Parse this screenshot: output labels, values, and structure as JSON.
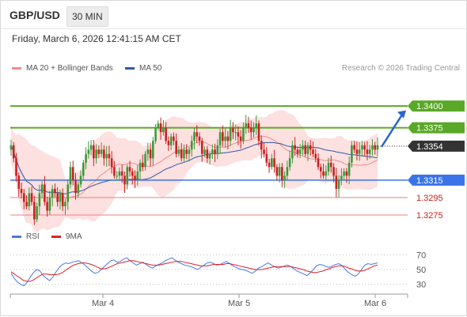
{
  "header": {
    "symbol": "GBP/USD",
    "period": "30 MIN",
    "timestamp": "Friday, March 6, 2026 12:41:15 AM CET"
  },
  "legend": {
    "ma20": "MA 20 + Bollinger Bands",
    "ma50": "MA 50",
    "ma20_color": "#f28b8b",
    "ma50_color": "#2f5aa5",
    "copyright": "Research © 2026 Trading Central"
  },
  "rsi_legend": {
    "rsi": "RSI",
    "ma9": "9MA",
    "rsi_color": "#4a7ae0",
    "ma9_color": "#e0202a"
  },
  "colors": {
    "bull": "#3b9a3b",
    "bear": "#cc2020",
    "green_level": "#5aa828",
    "blue_level": "#3a74e8",
    "red_level": "#ef7f7f",
    "band_fill": "#fde0e0",
    "last_price_bg": "#333333",
    "arrow": "#2a66c9"
  },
  "chart_data": [
    {
      "type": "candlestick",
      "symbol": "GBP/USD",
      "timeframe": "30 MIN",
      "ylim": [
        1.3265,
        1.343
      ],
      "x_ticks": [
        "Mar 4",
        "Mar 5",
        "Mar 6"
      ],
      "last_price": "1.3354",
      "levels": [
        {
          "label": "1.3400",
          "value": 1.34,
          "kind": "resistance",
          "color": "#5aa828"
        },
        {
          "label": "1.3375",
          "value": 1.3375,
          "kind": "resistance",
          "color": "#5aa828"
        },
        {
          "label": "1.3315",
          "value": 1.3315,
          "kind": "pivot",
          "color": "#3a74e8"
        },
        {
          "label": "1.3295",
          "value": 1.3295,
          "kind": "support",
          "color": "#ef7f7f"
        },
        {
          "label": "1.3275",
          "value": 1.3275,
          "kind": "support",
          "color": "#ef7f7f"
        }
      ],
      "projection": {
        "from": 1.3354,
        "to": 1.3395,
        "direction": "up"
      },
      "close": [
        1.3355,
        1.334,
        1.332,
        1.3305,
        1.33,
        1.329,
        1.3285,
        1.33,
        1.329,
        1.327,
        1.3285,
        1.33,
        1.331,
        1.329,
        1.328,
        1.3295,
        1.3305,
        1.33,
        1.329,
        1.33,
        1.3285,
        1.329,
        1.331,
        1.333,
        1.3315,
        1.33,
        1.331,
        1.332,
        1.3335,
        1.3345,
        1.335,
        1.3355,
        1.334,
        1.335,
        1.3345,
        1.335,
        1.334,
        1.3345,
        1.334,
        1.333,
        1.332,
        1.332,
        1.3325,
        1.332,
        1.331,
        1.333,
        1.3325,
        1.332,
        1.3315,
        1.3325,
        1.3335,
        1.333,
        1.3345,
        1.335,
        1.334,
        1.336,
        1.3375,
        1.338,
        1.337,
        1.3375,
        1.336,
        1.3355,
        1.3365,
        1.336,
        1.3345,
        1.335,
        1.334,
        1.335,
        1.3345,
        1.335,
        1.336,
        1.337,
        1.3365,
        1.336,
        1.3345,
        1.335,
        1.334,
        1.3345,
        1.335,
        1.3345,
        1.3355,
        1.337,
        1.336,
        1.3365,
        1.336,
        1.3375,
        1.337,
        1.337,
        1.3365,
        1.336,
        1.3375,
        1.338,
        1.3375,
        1.337,
        1.3375,
        1.338,
        1.336,
        1.335,
        1.3345,
        1.3335,
        1.333,
        1.334,
        1.333,
        1.332,
        1.333,
        1.3315,
        1.332,
        1.333,
        1.334,
        1.3355,
        1.335,
        1.3345,
        1.335,
        1.3355,
        1.3345,
        1.3355,
        1.335,
        1.3345,
        1.334,
        1.333,
        1.3325,
        1.332,
        1.3325,
        1.3335,
        1.333,
        1.332,
        1.3305,
        1.3315,
        1.332,
        1.3325,
        1.332,
        1.3335,
        1.3355,
        1.335,
        1.3345,
        1.335,
        1.3355,
        1.335,
        1.3345,
        1.335,
        1.3355,
        1.335,
        1.3355
      ],
      "rsi": {
        "ticks": [
          70,
          50,
          30
        ],
        "rsi": [
          45,
          38,
          33,
          30,
          28,
          33,
          40,
          46,
          50,
          48,
          42,
          38,
          35,
          40,
          47,
          53,
          57,
          59,
          58,
          60,
          61,
          62,
          59,
          56,
          52,
          48,
          45,
          46,
          50,
          54,
          58,
          62,
          63,
          60,
          61,
          64,
          66,
          62,
          59,
          56,
          58,
          60,
          57,
          54,
          52,
          55,
          57,
          59,
          62,
          64,
          66,
          63,
          60,
          58,
          56,
          55,
          54,
          52,
          50,
          53,
          56,
          59,
          60,
          58,
          56,
          57,
          59,
          61,
          58,
          55,
          53,
          51,
          50,
          49,
          47,
          45,
          48,
          52,
          54,
          57,
          59,
          56,
          54,
          52,
          53,
          55,
          56,
          54,
          51,
          48,
          46,
          44,
          42,
          45,
          50,
          55,
          57,
          56,
          54,
          53,
          55,
          57,
          58,
          55,
          50,
          46,
          43,
          41,
          44,
          50,
          56,
          58,
          57,
          58,
          59
        ],
        "ma9": [
          47,
          44,
          41,
          38,
          35,
          34,
          34,
          36,
          39,
          42,
          44,
          44,
          43,
          43,
          43,
          44,
          46,
          49,
          52,
          55,
          57,
          58,
          59,
          59,
          58,
          57,
          55,
          53,
          51,
          51,
          52,
          54,
          56,
          58,
          59,
          60,
          61,
          62,
          62,
          61,
          60,
          59,
          58,
          57,
          56,
          56,
          56,
          57,
          58,
          59,
          60,
          61,
          61,
          61,
          60,
          59,
          58,
          57,
          56,
          55,
          55,
          55,
          56,
          57,
          57,
          57,
          57,
          58,
          58,
          57,
          56,
          55,
          54,
          53,
          52,
          51,
          50,
          50,
          50,
          51,
          52,
          53,
          54,
          54,
          54,
          54,
          54,
          54,
          53,
          52,
          51,
          50,
          48,
          47,
          46,
          46,
          47,
          48,
          50,
          51,
          53,
          54,
          55,
          55,
          54,
          52,
          51,
          49,
          48,
          48,
          49,
          51,
          53,
          55,
          56
        ]
      }
    }
  ]
}
